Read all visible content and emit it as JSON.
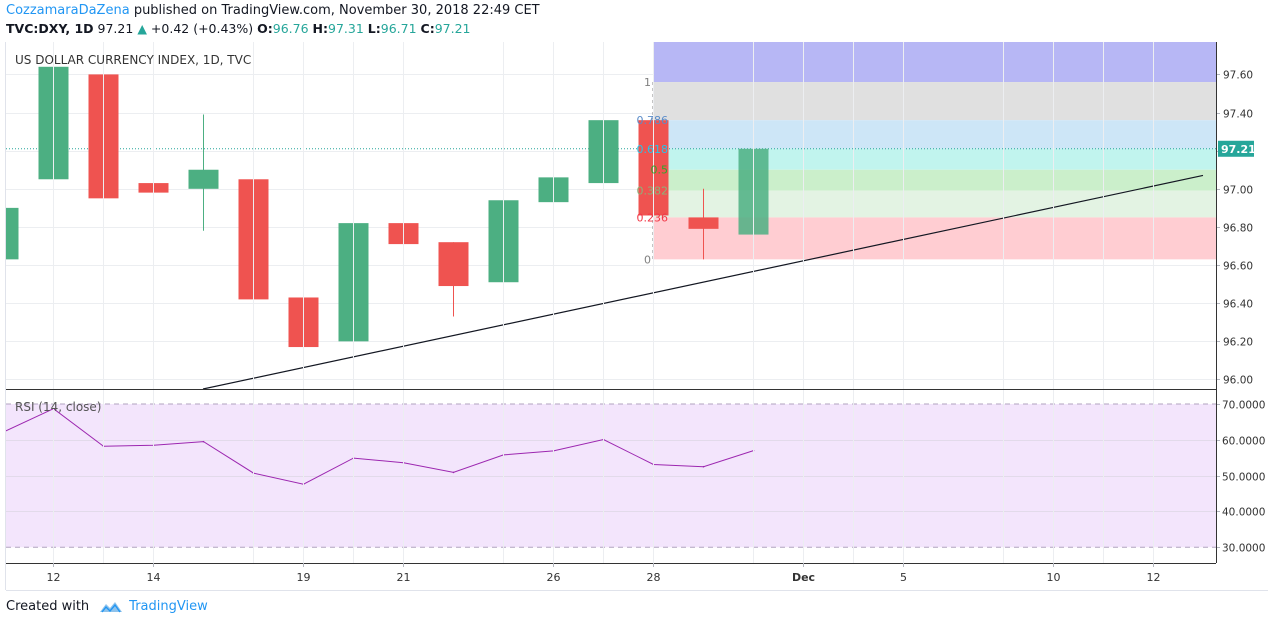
{
  "header": {
    "author": "CozzamaraDaZena",
    "published": "published on TradingView.com, November 30, 2018 22:49 CET",
    "symbol": "TVC:DXY, 1D",
    "last": "97.21",
    "change": "+0.42 (+0.43%)",
    "o_label": "O:",
    "o_value": "96.76",
    "h_label": "H:",
    "h_value": "97.31",
    "l_label": "L:",
    "l_value": "96.71",
    "c_label": "C:",
    "c_value": "97.21"
  },
  "footer": {
    "created_with": "Created with",
    "brand": "TradingView"
  },
  "colors": {
    "up": "#26a69a",
    "up_body": "#4caf82",
    "down": "#ef5350",
    "rsi_line": "#9c27b0",
    "rsi_band": "#f3e5fc",
    "last_price": "#26a69a"
  },
  "chart_data": [
    {
      "type": "candlestick",
      "title": "US DOLLAR CURRENCY INDEX, 1D, TVC",
      "x_tick_labels": [
        "12",
        "14",
        "19",
        "21",
        "26",
        "28",
        "Dec",
        "5",
        "10",
        "12"
      ],
      "y_tick_labels": [
        "97.60",
        "97.40",
        "97.20",
        "97.00",
        "96.80",
        "96.60",
        "96.40",
        "96.20",
        "96.00"
      ],
      "ylim": [
        95.95,
        97.77
      ],
      "last_price_label": "97.21",
      "candles": [
        {
          "date": "Nov 9",
          "open": 96.63,
          "high": 96.9,
          "low": 96.6,
          "close": 96.9
        },
        {
          "date": "Nov 12",
          "open": 97.05,
          "high": 97.65,
          "low": 96.97,
          "close": 97.64
        },
        {
          "date": "Nov 13",
          "open": 97.6,
          "high": 97.66,
          "low": 96.93,
          "close": 96.95
        },
        {
          "date": "Nov 14",
          "open": 97.03,
          "high": 97.41,
          "low": 96.75,
          "close": 96.98
        },
        {
          "date": "Nov 15",
          "open": 97.0,
          "high": 97.39,
          "low": 96.78,
          "close": 97.1
        },
        {
          "date": "Nov 16",
          "open": 97.05,
          "high": 97.05,
          "low": 96.42,
          "close": 96.42
        },
        {
          "date": "Nov 19",
          "open": 96.43,
          "high": 96.57,
          "low": 96.11,
          "close": 96.17
        },
        {
          "date": "Nov 20",
          "open": 96.2,
          "high": 96.89,
          "low": 96.05,
          "close": 96.82
        },
        {
          "date": "Nov 21",
          "open": 96.82,
          "high": 96.86,
          "low": 96.5,
          "close": 96.71
        },
        {
          "date": "Nov 22",
          "open": 96.72,
          "high": 96.72,
          "low": 96.33,
          "close": 96.49
        },
        {
          "date": "Nov 23",
          "open": 96.51,
          "high": 96.98,
          "low": 96.41,
          "close": 96.94
        },
        {
          "date": "Nov 26",
          "open": 96.93,
          "high": 97.12,
          "low": 96.66,
          "close": 97.06
        },
        {
          "date": "Nov 27",
          "open": 97.03,
          "high": 97.5,
          "low": 96.99,
          "close": 97.36
        },
        {
          "date": "Nov 28",
          "open": 97.36,
          "high": 97.4,
          "low": 96.79,
          "close": 96.86
        },
        {
          "date": "Nov 29",
          "open": 96.85,
          "high": 97.0,
          "low": 96.63,
          "close": 96.79
        },
        {
          "date": "Nov 30",
          "open": 96.76,
          "high": 97.31,
          "low": 96.71,
          "close": 97.21
        }
      ],
      "fib_levels": [
        {
          "label": "1",
          "value": 97.56,
          "color": "#b7b7f5"
        },
        {
          "label": "0.786",
          "value": 97.36,
          "color": "#e0e0e0"
        },
        {
          "label": "0.618",
          "value": 97.21,
          "color": "#cde6f7"
        },
        {
          "label": "0.5",
          "value": 97.1,
          "color": "#c1f4ee"
        },
        {
          "label": "0.382",
          "value": 96.99,
          "color": "#cbefcb"
        },
        {
          "label": "0.236",
          "value": 96.85,
          "color": "#e3f3e3"
        },
        {
          "label": "0",
          "value": 96.63,
          "color": "#ffcdd2"
        }
      ],
      "fib_label_colors": [
        "#808080",
        "#5c8dc9",
        "#27c4e8",
        "#2da82d",
        "#8bb37a",
        "#f23645",
        "#808080"
      ],
      "trendline": {
        "from": {
          "date": "Nov 15",
          "value": 95.95
        },
        "to": {
          "date": "Dec 13",
          "value": 97.07
        }
      }
    },
    {
      "type": "line",
      "title": "RSI (14, close)",
      "y_tick_labels": [
        "70.0000",
        "60.0000",
        "50.0000",
        "40.0000",
        "30.0000"
      ],
      "ylim": [
        25.6,
        74.2
      ],
      "band": [
        30,
        70
      ],
      "x": [
        "Nov 9",
        "Nov 12",
        "Nov 13",
        "Nov 14",
        "Nov 15",
        "Nov 16",
        "Nov 19",
        "Nov 20",
        "Nov 21",
        "Nov 22",
        "Nov 23",
        "Nov 26",
        "Nov 27",
        "Nov 28",
        "Nov 29",
        "Nov 30"
      ],
      "values": [
        62.2,
        68.7,
        58.2,
        58.5,
        59.5,
        50.7,
        47.6,
        54.9,
        53.6,
        50.9,
        55.8,
        56.9,
        60.1,
        53.1,
        52.5,
        57.0
      ]
    }
  ]
}
